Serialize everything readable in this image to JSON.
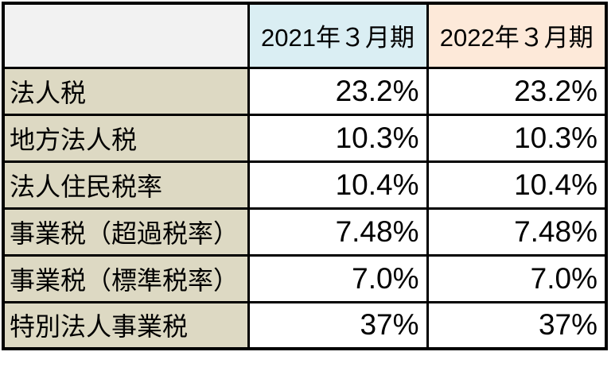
{
  "chart_data": {
    "type": "table",
    "title": "",
    "columns": [
      "",
      "2021年３月期",
      "2022年３月期"
    ],
    "rows": [
      {
        "label": "法人税",
        "values": [
          "23.2%",
          "23.2%"
        ]
      },
      {
        "label": "地方法人税",
        "values": [
          "10.3%",
          "10.3%"
        ]
      },
      {
        "label": "法人住民税率",
        "values": [
          "10.4%",
          "10.4%"
        ]
      },
      {
        "label": "事業税（超過税率）",
        "values": [
          "7.48%",
          "7.48%"
        ]
      },
      {
        "label": "事業税（標準税率）",
        "values": [
          "7.0%",
          "7.0%"
        ]
      },
      {
        "label": "特別法人事業税",
        "values": [
          "37%",
          "37%"
        ]
      }
    ],
    "layout_hints": {
      "value_alignment": "right",
      "label_alignment": "left",
      "header_alignment": "center",
      "grid": "thick-black-borders"
    }
  },
  "colors": {
    "corner_bg": "#f2f2f2",
    "header_2021_bg": "#daeef3",
    "header_2022_bg": "#fde9d9",
    "label_bg": "#ddd9c3",
    "value_bg": "#ffffff",
    "border": "#000000",
    "text": "#000000"
  }
}
